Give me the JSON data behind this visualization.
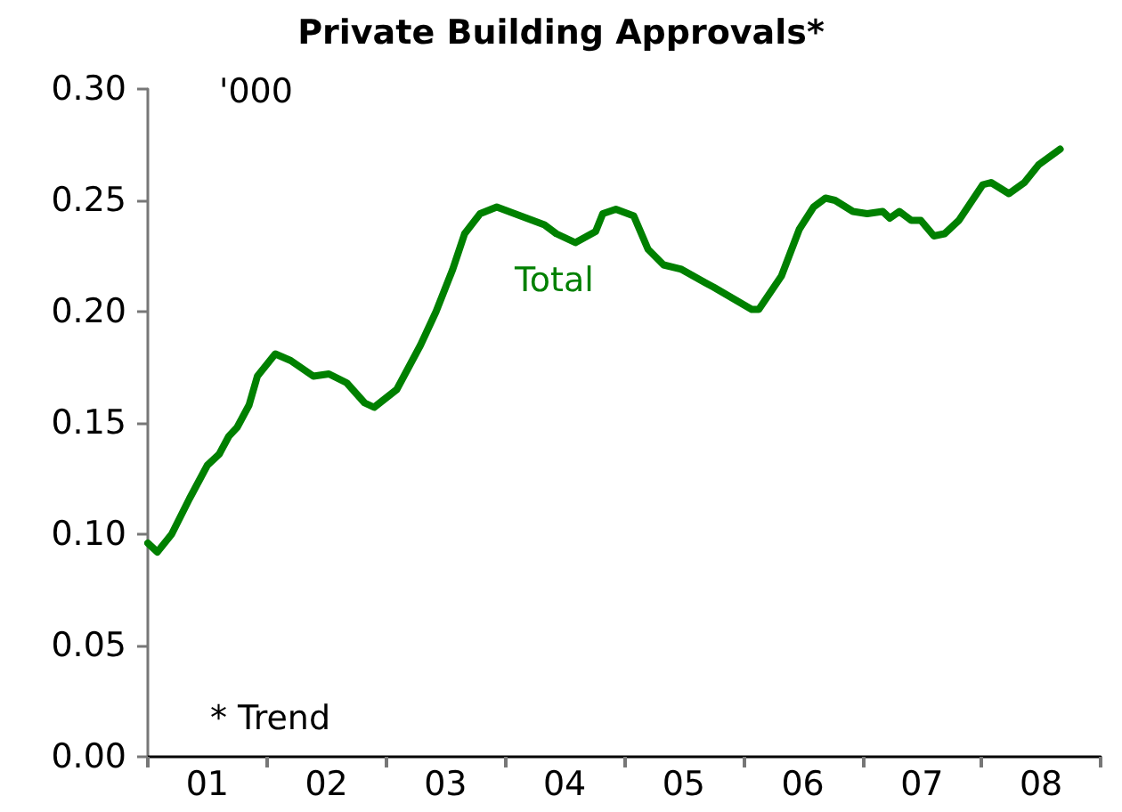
{
  "chart_data": {
    "type": "line",
    "title": "Private Building Approvals*",
    "annotations": [
      "'000",
      "* Trend"
    ],
    "xlim": [
      0.5,
      8.5
    ],
    "xticks": [
      {
        "value": 0.5,
        "label": null
      },
      {
        "value": 1,
        "label": "01"
      },
      {
        "value": 1.5,
        "label": null
      },
      {
        "value": 2,
        "label": "02"
      },
      {
        "value": 2.5,
        "label": null
      },
      {
        "value": 3,
        "label": "03"
      },
      {
        "value": 3.5,
        "label": null
      },
      {
        "value": 4,
        "label": "04"
      },
      {
        "value": 4.5,
        "label": null
      },
      {
        "value": 5,
        "label": "05"
      },
      {
        "value": 5.5,
        "label": null
      },
      {
        "value": 6,
        "label": "06"
      },
      {
        "value": 6.5,
        "label": null
      },
      {
        "value": 7,
        "label": "07"
      },
      {
        "value": 7.5,
        "label": null
      },
      {
        "value": 8,
        "label": "08"
      },
      {
        "value": 8.5,
        "label": null
      }
    ],
    "ylim": [
      0,
      0.3
    ],
    "yticks": [
      {
        "value": 0,
        "label": "0.00"
      },
      {
        "value": 0.05,
        "label": "0.05"
      },
      {
        "value": 0.1,
        "label": "0.10"
      },
      {
        "value": 0.15,
        "label": "0.15"
      },
      {
        "value": 0.2,
        "label": "0.20"
      },
      {
        "value": 0.25,
        "label": "0.25"
      },
      {
        "value": 0.3,
        "label": "0.30"
      }
    ],
    "grid": false,
    "legend": false,
    "marker": "none",
    "line_style": "solid",
    "series": [
      {
        "name": "Total",
        "color": "#008000",
        "x": [
          0.5,
          0.58,
          0.7,
          0.85,
          1.0,
          1.1,
          1.18,
          1.25,
          1.35,
          1.42,
          1.57,
          1.7,
          1.89,
          2.02,
          2.17,
          2.32,
          2.4,
          2.59,
          2.69,
          2.79,
          2.92,
          3.06,
          3.16,
          3.29,
          3.43,
          3.58,
          3.83,
          3.93,
          4.09,
          4.26,
          4.32,
          4.43,
          4.58,
          4.7,
          4.83,
          4.98,
          5.18,
          5.25,
          5.57,
          5.63,
          5.82,
          5.97,
          6.09,
          6.19,
          6.27,
          6.42,
          6.54,
          6.67,
          6.73,
          6.81,
          6.91,
          6.99,
          7.1,
          7.19,
          7.31,
          7.51,
          7.58,
          7.73,
          7.86,
          7.98,
          8.16
        ],
        "values": [
          0.096,
          0.092,
          0.1,
          0.116,
          0.131,
          0.136,
          0.144,
          0.148,
          0.158,
          0.171,
          0.181,
          0.178,
          0.171,
          0.172,
          0.168,
          0.159,
          0.157,
          0.165,
          0.175,
          0.185,
          0.2,
          0.219,
          0.235,
          0.244,
          0.247,
          0.244,
          0.239,
          0.235,
          0.231,
          0.236,
          0.244,
          0.246,
          0.243,
          0.228,
          0.221,
          0.219,
          0.213,
          0.211,
          0.201,
          0.201,
          0.216,
          0.237,
          0.247,
          0.251,
          0.25,
          0.245,
          0.244,
          0.245,
          0.242,
          0.245,
          0.241,
          0.241,
          0.234,
          0.235,
          0.241,
          0.257,
          0.258,
          0.253,
          0.258,
          0.266,
          0.273
        ]
      }
    ]
  }
}
